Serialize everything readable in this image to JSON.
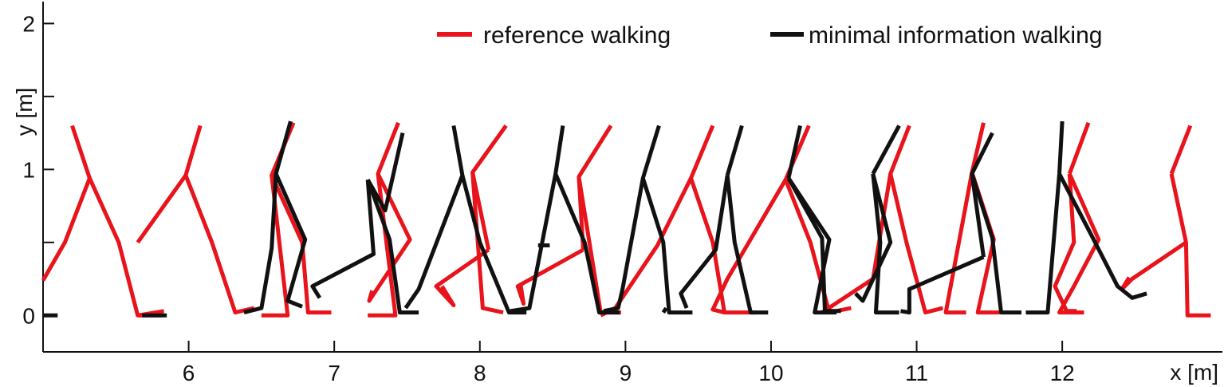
{
  "chart_data": {
    "type": "line",
    "xlabel": "x [m]",
    "ylabel": "y [m]",
    "xlim": [
      5.0,
      13.1
    ],
    "ylim": [
      -0.25,
      2.15
    ],
    "x_ticks": [
      6,
      7,
      8,
      9,
      10,
      11,
      12
    ],
    "y_ticks": [
      0,
      0.5,
      1,
      1.5,
      2
    ],
    "y_tick_labels": [
      "0",
      "",
      "1",
      "",
      "2"
    ],
    "legend": {
      "placement": "top-right"
    },
    "series": [
      {
        "name": "reference walking",
        "color": "#e8131b",
        "frames": [
          [
            [
              5.0,
              0.24
            ],
            [
              5.15,
              0.5
            ],
            [
              5.32,
              0.94
            ],
            [
              5.2,
              1.3
            ]
          ],
          [
            [
              5.32,
              0.94
            ],
            [
              5.52,
              0.5
            ],
            [
              5.65,
              0.0
            ],
            [
              5.82,
              0.0
            ]
          ],
          [
            [
              5.65,
              0.0
            ],
            [
              5.83,
              0.03
            ]
          ],
          [
            [
              5.65,
              0.5
            ],
            [
              5.98,
              0.96
            ],
            [
              6.08,
              1.3
            ]
          ],
          [
            [
              5.98,
              0.96
            ],
            [
              6.16,
              0.5
            ],
            [
              6.32,
              0.02
            ],
            [
              6.45,
              0.05
            ]
          ],
          [
            [
              6.5,
              0.0
            ],
            [
              6.68,
              0.0
            ],
            [
              6.57,
              0.96
            ],
            [
              6.72,
              1.32
            ]
          ],
          [
            [
              6.57,
              0.96
            ],
            [
              6.78,
              0.5
            ],
            [
              6.82,
              0.02
            ],
            [
              6.98,
              0.02
            ]
          ],
          [
            [
              7.23,
              0.0
            ],
            [
              7.42,
              0.0
            ],
            [
              7.3,
              0.97
            ],
            [
              7.44,
              1.32
            ]
          ],
          [
            [
              7.3,
              0.97
            ],
            [
              7.52,
              0.52
            ],
            [
              7.24,
              0.1
            ],
            [
              7.26,
              0.17
            ]
          ],
          [
            [
              7.74,
              0.2
            ],
            [
              7.82,
              0.07
            ],
            [
              7.7,
              0.2
            ],
            [
              8.06,
              0.45
            ]
          ],
          [
            [
              8.06,
              0.45
            ],
            [
              7.95,
              0.98
            ],
            [
              8.18,
              1.3
            ]
          ],
          [
            [
              7.95,
              0.98
            ],
            [
              8.02,
              0.05
            ],
            [
              8.16,
              0.02
            ]
          ],
          [
            [
              8.28,
              0.21
            ],
            [
              8.3,
              0.08
            ],
            [
              8.26,
              0.2
            ],
            [
              8.71,
              0.45
            ]
          ],
          [
            [
              8.71,
              0.45
            ],
            [
              8.68,
              0.95
            ],
            [
              8.9,
              1.3
            ]
          ],
          [
            [
              8.68,
              0.95
            ],
            [
              8.83,
              0.02
            ],
            [
              8.97,
              0.02
            ]
          ],
          [
            [
              8.83,
              0.0
            ],
            [
              8.93,
              0.05
            ],
            [
              9.22,
              0.48
            ],
            [
              9.45,
              0.94
            ],
            [
              9.6,
              1.3
            ]
          ],
          [
            [
              9.45,
              0.94
            ],
            [
              9.6,
              0.5
            ],
            [
              9.68,
              0.02
            ],
            [
              9.9,
              0.02
            ]
          ],
          [
            [
              10.1,
              0.93
            ],
            [
              9.7,
              0.25
            ],
            [
              9.6,
              0.04
            ],
            [
              9.68,
              0.02
            ]
          ],
          [
            [
              10.1,
              0.93
            ],
            [
              10.26,
              1.3
            ]
          ],
          [
            [
              10.1,
              0.93
            ],
            [
              10.27,
              0.5
            ],
            [
              10.4,
              0.02
            ],
            [
              10.55,
              0.05
            ]
          ],
          [
            [
              10.35,
              0.02
            ],
            [
              10.7,
              0.25
            ],
            [
              10.82,
              0.97
            ],
            [
              10.95,
              1.3
            ]
          ],
          [
            [
              10.82,
              0.97
            ],
            [
              10.93,
              0.5
            ],
            [
              11.06,
              0.02
            ],
            [
              11.18,
              0.05
            ]
          ],
          [
            [
              11.38,
              0.98
            ],
            [
              11.46,
              1.32
            ]
          ],
          [
            [
              11.38,
              0.98
            ],
            [
              11.2,
              0.02
            ],
            [
              11.34,
              0.02
            ]
          ],
          [
            [
              11.38,
              0.98
            ],
            [
              11.53,
              0.52
            ],
            [
              11.42,
              0.02
            ],
            [
              11.57,
              0.02
            ]
          ],
          [
            [
              12.05,
              0.97
            ],
            [
              12.18,
              1.32
            ]
          ],
          [
            [
              12.05,
              0.97
            ],
            [
              12.08,
              0.5
            ],
            [
              11.95,
              0.2
            ],
            [
              12.03,
              0.03
            ],
            [
              12.1,
              0.03
            ]
          ],
          [
            [
              12.05,
              0.97
            ],
            [
              12.25,
              0.52
            ],
            [
              12.08,
              0.2
            ],
            [
              11.98,
              0.02
            ],
            [
              12.15,
              0.02
            ]
          ],
          [
            [
              12.75,
              0.97
            ],
            [
              12.88,
              1.3
            ]
          ],
          [
            [
              12.75,
              0.97
            ],
            [
              12.85,
              0.5
            ],
            [
              12.86,
              0.0
            ],
            [
              13.02,
              0.0
            ]
          ],
          [
            [
              12.85,
              0.5
            ],
            [
              12.48,
              0.25
            ],
            [
              12.41,
              0.18
            ],
            [
              12.46,
              0.26
            ]
          ]
        ]
      },
      {
        "name": "minimal information walking",
        "color": "#111111",
        "frames": [
          [
            [
              5.0,
              0.0
            ],
            [
              5.1,
              0.0
            ]
          ],
          [
            [
              5.68,
              0.0
            ],
            [
              5.85,
              0.0
            ]
          ],
          [
            [
              6.38,
              0.02
            ],
            [
              6.5,
              0.05
            ],
            [
              6.57,
              0.46
            ],
            [
              6.6,
              0.97
            ],
            [
              6.7,
              1.33
            ]
          ],
          [
            [
              6.6,
              0.97
            ],
            [
              6.8,
              0.52
            ],
            [
              6.68,
              0.1
            ],
            [
              6.78,
              0.06
            ]
          ],
          [
            [
              7.23,
              0.93
            ],
            [
              7.27,
              0.42
            ],
            [
              6.85,
              0.2
            ],
            [
              6.9,
              0.12
            ]
          ],
          [
            [
              7.23,
              0.93
            ],
            [
              7.35,
              0.72
            ],
            [
              7.47,
              1.25
            ]
          ],
          [
            [
              7.23,
              0.93
            ],
            [
              7.38,
              0.52
            ],
            [
              7.45,
              0.02
            ],
            [
              7.58,
              0.02
            ]
          ],
          [
            [
              7.49,
              0.05
            ],
            [
              7.58,
              0.18
            ],
            [
              7.88,
              0.96
            ],
            [
              7.82,
              1.3
            ]
          ],
          [
            [
              7.88,
              0.96
            ],
            [
              8.0,
              0.5
            ],
            [
              8.2,
              0.02
            ],
            [
              8.32,
              0.02
            ]
          ],
          [
            [
              8.21,
              0.03
            ],
            [
              8.34,
              0.05
            ],
            [
              8.52,
              0.97
            ],
            [
              8.57,
              1.3
            ]
          ],
          [
            [
              8.52,
              0.97
            ],
            [
              8.72,
              0.5
            ],
            [
              8.82,
              0.02
            ],
            [
              8.96,
              0.02
            ]
          ],
          [
            [
              8.48,
              0.48
            ],
            [
              8.4,
              0.48
            ]
          ],
          [
            [
              8.85,
              0.03
            ],
            [
              8.95,
              0.05
            ],
            [
              8.98,
              0.18
            ],
            [
              9.12,
              0.94
            ],
            [
              9.23,
              1.3
            ]
          ],
          [
            [
              9.12,
              0.94
            ],
            [
              9.26,
              0.5
            ],
            [
              9.3,
              0.02
            ],
            [
              9.46,
              0.02
            ]
          ],
          [
            [
              9.26,
              0.02
            ],
            [
              9.28,
              0.05
            ]
          ],
          [
            [
              9.7,
              0.96
            ],
            [
              9.62,
              0.45
            ],
            [
              9.38,
              0.15
            ],
            [
              9.42,
              0.05
            ]
          ],
          [
            [
              9.7,
              0.96
            ],
            [
              9.8,
              1.3
            ]
          ],
          [
            [
              9.7,
              0.96
            ],
            [
              9.75,
              0.5
            ],
            [
              9.86,
              0.02
            ],
            [
              9.98,
              0.02
            ]
          ],
          [
            [
              10.12,
              0.94
            ],
            [
              10.2,
              1.3
            ]
          ],
          [
            [
              10.12,
              0.94
            ],
            [
              10.35,
              0.53
            ],
            [
              10.37,
              0.03
            ],
            [
              10.48,
              0.03
            ]
          ],
          [
            [
              10.12,
              0.94
            ],
            [
              10.4,
              0.52
            ],
            [
              10.3,
              0.02
            ],
            [
              10.45,
              0.02
            ]
          ],
          [
            [
              10.7,
              0.97
            ],
            [
              10.82,
              0.5
            ],
            [
              10.63,
              0.1
            ],
            [
              10.58,
              0.15
            ]
          ],
          [
            [
              10.7,
              0.97
            ],
            [
              10.75,
              0.5
            ],
            [
              10.72,
              0.02
            ],
            [
              10.88,
              0.02
            ]
          ],
          [
            [
              10.7,
              0.97
            ],
            [
              10.88,
              1.3
            ]
          ],
          [
            [
              10.89,
              0.03
            ],
            [
              10.95,
              0.02
            ],
            [
              10.95,
              0.18
            ],
            [
              11.46,
              0.4
            ]
          ],
          [
            [
              11.46,
              0.4
            ],
            [
              11.38,
              0.97
            ],
            [
              11.52,
              1.25
            ]
          ],
          [
            [
              11.38,
              0.97
            ],
            [
              11.52,
              0.53
            ],
            [
              11.58,
              0.02
            ],
            [
              11.72,
              0.02
            ]
          ],
          [
            [
              11.75,
              0.02
            ],
            [
              11.9,
              0.02
            ],
            [
              11.98,
              0.97
            ],
            [
              12.0,
              1.33
            ]
          ],
          [
            [
              11.98,
              0.97
            ],
            [
              12.2,
              0.55
            ],
            [
              12.38,
              0.2
            ],
            [
              12.48,
              0.12
            ],
            [
              12.58,
              0.15
            ]
          ]
        ]
      }
    ]
  }
}
